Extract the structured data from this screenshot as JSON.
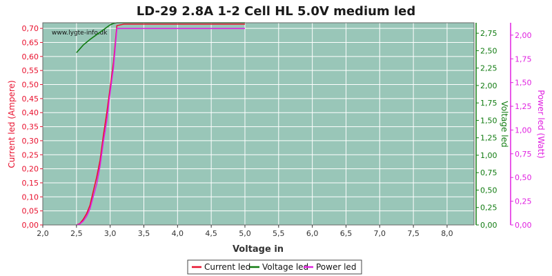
{
  "chart_data": {
    "type": "line",
    "title": "LD-29 2.8A 1-2 Cell HL 5.0V medium led",
    "watermark": "www.lygte-info.dk",
    "xlabel": "Voltage in",
    "xlim": [
      2.0,
      8.4
    ],
    "xticks": [
      "2,0",
      "2,5",
      "3,0",
      "3,5",
      "4,0",
      "4,5",
      "5,0",
      "5,5",
      "6,0",
      "6,5",
      "7,0",
      "7,5",
      "8,0"
    ],
    "grid": true,
    "legend_position": "bottom",
    "background_color": "#99c6b8",
    "axes": {
      "current": {
        "label": "Current led (Ampere)",
        "color": "#e8102d",
        "lim": [
          0,
          0.72
        ],
        "ticks": [
          "0,00",
          "0,05",
          "0,10",
          "0,15",
          "0,20",
          "0,25",
          "0,30",
          "0,35",
          "0,40",
          "0,45",
          "0,50",
          "0,55",
          "0,60",
          "0,65",
          "0,70"
        ]
      },
      "voltage": {
        "label": "Voltage led",
        "color": "#0f7a0f",
        "lim": [
          0,
          2.9
        ],
        "ticks": [
          "0,00",
          "0,25",
          "0,50",
          "0,75",
          "1,00",
          "1,25",
          "1,50",
          "1,75",
          "2,00",
          "2,25",
          "2,50",
          "2,75"
        ]
      },
      "power": {
        "label": "Power led (Watt)",
        "color": "#e020e0",
        "lim": [
          0,
          2.13
        ],
        "ticks": [
          "0,00",
          "0,25",
          "0,50",
          "0,75",
          "1,00",
          "1,25",
          "1,50",
          "1,75",
          "2,00"
        ]
      }
    },
    "series": [
      {
        "name": "Current led",
        "axis": "current",
        "color": "#e8102d",
        "x": [
          2.5,
          2.55,
          2.6,
          2.65,
          2.7,
          2.75,
          2.8,
          2.85,
          2.9,
          2.95,
          3.0,
          3.05,
          3.1,
          3.2,
          3.5,
          4.0,
          4.5,
          5.0
        ],
        "y": [
          0.0,
          0.005,
          0.02,
          0.04,
          0.07,
          0.12,
          0.17,
          0.23,
          0.32,
          0.4,
          0.49,
          0.58,
          0.71,
          0.715,
          0.715,
          0.715,
          0.715,
          0.715
        ]
      },
      {
        "name": "Voltage led",
        "axis": "voltage",
        "color": "#0f7a0f",
        "x": [
          2.5,
          2.6,
          2.7,
          2.8,
          2.9,
          3.0,
          3.05,
          3.1,
          3.2,
          3.5,
          4.0,
          4.5,
          5.0
        ],
        "y": [
          2.47,
          2.58,
          2.66,
          2.73,
          2.8,
          2.87,
          2.89,
          2.9,
          2.9,
          2.9,
          2.9,
          2.9,
          2.9
        ]
      },
      {
        "name": "Power led",
        "axis": "power",
        "color": "#e020e0",
        "x": [
          2.5,
          2.55,
          2.6,
          2.65,
          2.7,
          2.75,
          2.8,
          2.85,
          2.9,
          2.95,
          3.0,
          3.05,
          3.1,
          3.2,
          3.5,
          4.0,
          4.5,
          5.0
        ],
        "y": [
          0.0,
          0.01,
          0.04,
          0.09,
          0.17,
          0.3,
          0.43,
          0.62,
          0.88,
          1.1,
          1.4,
          1.66,
          2.07,
          2.07,
          2.07,
          2.07,
          2.07,
          2.07
        ]
      }
    ]
  }
}
